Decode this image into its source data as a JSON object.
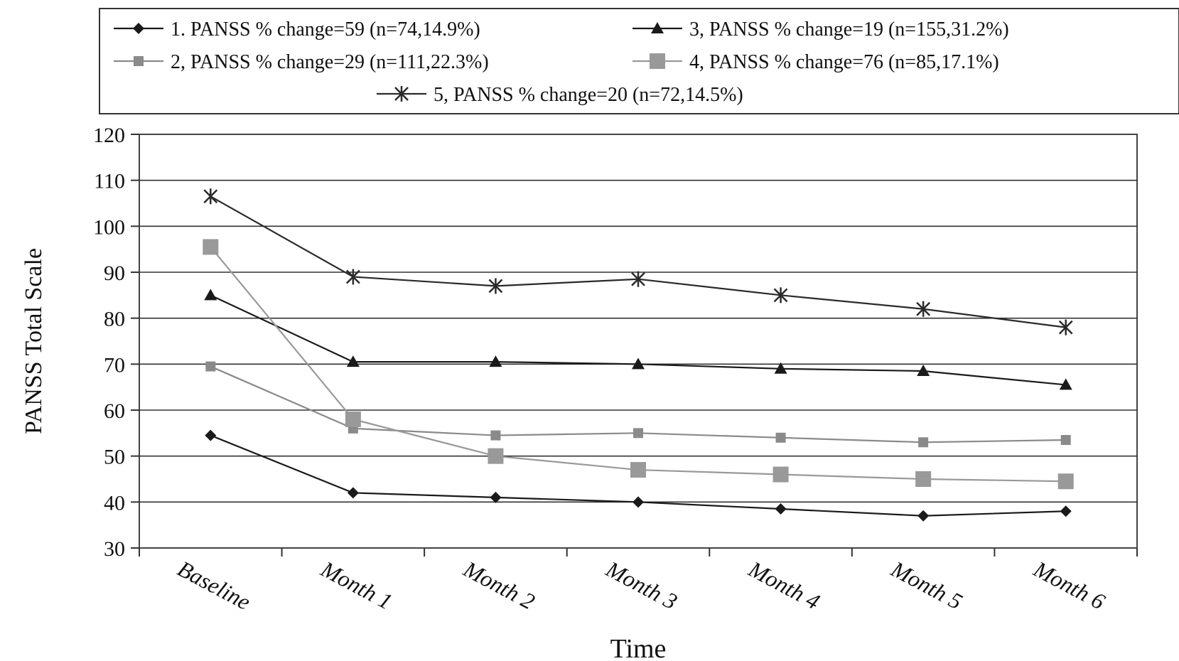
{
  "chart_data": {
    "type": "line",
    "title": "",
    "xlabel": "Time",
    "ylabel": "PANSS Total Scale",
    "ylim": [
      30,
      120
    ],
    "yticks": [
      30,
      40,
      50,
      60,
      70,
      80,
      90,
      100,
      110,
      120
    ],
    "categories": [
      "Baseline",
      "Month 1",
      "Month 2",
      "Month 3",
      "Month 4",
      "Month 5",
      "Month 6"
    ],
    "grid": "horizontal",
    "legend_position": "top",
    "series": [
      {
        "name": "1. PANSS % change=59 (n=74,14.9%)",
        "marker": "diamond",
        "color": "#1a1a1a",
        "values": [
          54.5,
          42,
          41,
          40,
          38.5,
          37,
          38
        ]
      },
      {
        "name": "2, PANSS % change=29 (n=111,22.3%)",
        "marker": "small-square",
        "color": "#8a8a8a",
        "values": [
          69.5,
          56,
          54.5,
          55,
          54,
          53,
          53.5
        ]
      },
      {
        "name": "3, PANSS % change=19 (n=155,31.2%)",
        "marker": "triangle",
        "color": "#1a1a1a",
        "values": [
          85,
          70.5,
          70.5,
          70,
          69,
          68.5,
          65.5
        ]
      },
      {
        "name": "4, PANSS % change=76 (n=85,17.1%)",
        "marker": "large-square",
        "color": "#999999",
        "values": [
          95.5,
          58,
          50,
          47,
          46,
          45,
          44.5
        ]
      },
      {
        "name": "5, PANSS % change=20 (n=72,14.5%)",
        "marker": "star",
        "color": "#2a2a2a",
        "values": [
          106.5,
          89,
          87,
          88.5,
          85,
          82,
          78
        ]
      }
    ]
  }
}
